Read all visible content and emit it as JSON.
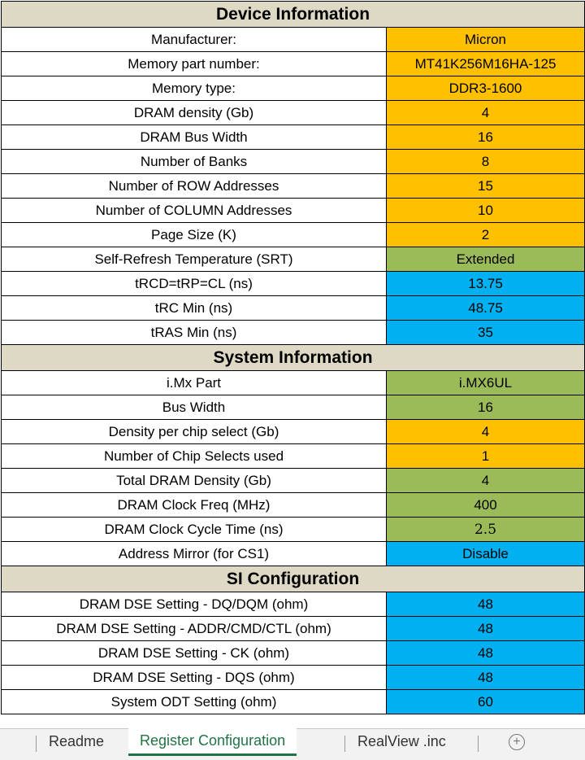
{
  "sections": [
    {
      "title": "Device Information",
      "rows": [
        {
          "label": "Manufacturer:",
          "value": "Micron",
          "color": "#ffc000"
        },
        {
          "label": "Memory part number:",
          "value": "MT41K256M16HA-125",
          "color": "#ffc000"
        },
        {
          "label": "Memory type:",
          "value": "DDR3-1600",
          "color": "#ffc000"
        },
        {
          "label": "DRAM density (Gb)",
          "value": "4",
          "color": "#ffc000"
        },
        {
          "label": "DRAM Bus Width",
          "value": "16",
          "color": "#ffc000"
        },
        {
          "label": "Number of Banks",
          "value": "8",
          "color": "#ffc000"
        },
        {
          "label": "Number of ROW Addresses",
          "value": "15",
          "color": "#ffc000"
        },
        {
          "label": "Number of COLUMN Addresses",
          "value": "10",
          "color": "#ffc000"
        },
        {
          "label": "Page Size (K)",
          "value": "2",
          "color": "#ffc000"
        },
        {
          "label": "Self-Refresh Temperature (SRT)",
          "value": "Extended",
          "color": "#9bbb59"
        },
        {
          "label": "tRCD=tRP=CL (ns)",
          "value": "13.75",
          "color": "#00b0f0"
        },
        {
          "label": "tRC Min (ns)",
          "value": "48.75",
          "color": "#00b0f0"
        },
        {
          "label": "tRAS Min (ns)",
          "value": "35",
          "color": "#00b0f0"
        }
      ]
    },
    {
      "title": "System Information",
      "rows": [
        {
          "label": "i.Mx Part",
          "value": "i.MX6UL",
          "color": "#9bbb59"
        },
        {
          "label": "Bus Width",
          "value": "16",
          "color": "#9bbb59"
        },
        {
          "label": "Density per chip select (Gb)",
          "value": "4",
          "color": "#ffc000"
        },
        {
          "label": "Number of Chip Selects used",
          "value": "1",
          "color": "#ffc000"
        },
        {
          "label": "Total DRAM Density (Gb)",
          "value": "4",
          "color": "#9bbb59"
        },
        {
          "label": "DRAM Clock Freq (MHz)",
          "value": "400",
          "color": "#9bbb59"
        },
        {
          "label": "DRAM Clock Cycle Time (ns)",
          "value": "2.5",
          "color": "#9bbb59"
        },
        {
          "label": "Address Mirror (for CS1)",
          "value": "Disable",
          "color": "#00b0f0"
        }
      ]
    },
    {
      "title": "SI Configuration",
      "rows": [
        {
          "label": "DRAM DSE Setting - DQ/DQM (ohm)",
          "value": "48",
          "color": "#00b0f0"
        },
        {
          "label": "DRAM DSE Setting - ADDR/CMD/CTL (ohm)",
          "value": "48",
          "color": "#00b0f0"
        },
        {
          "label": "DRAM DSE Setting - CK (ohm)",
          "value": "48",
          "color": "#00b0f0"
        },
        {
          "label": "DRAM DSE Setting - DQS (ohm)",
          "value": "48",
          "color": "#00b0f0"
        },
        {
          "label": "System ODT Setting (ohm)",
          "value": "60",
          "color": "#00b0f0"
        }
      ]
    }
  ],
  "tabs": {
    "readme": "Readme",
    "register_configuration": "Register Configuration",
    "realview": "RealView .inc",
    "add": "+"
  },
  "colors": {
    "header": "#ddd9c4",
    "orange": "#ffc000",
    "green": "#9bbb59",
    "blue": "#00b0f0",
    "active_tab": "#217346"
  }
}
